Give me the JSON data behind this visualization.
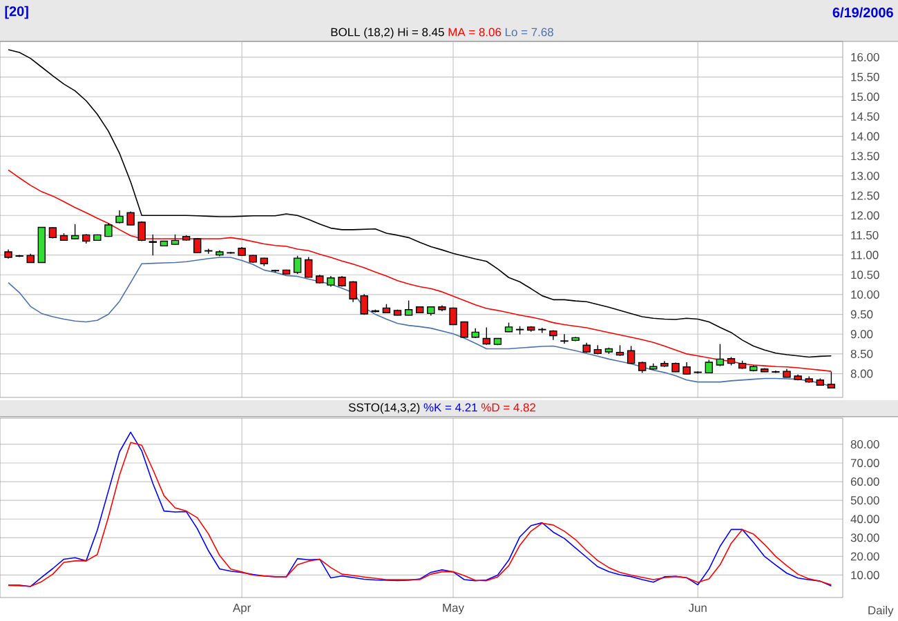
{
  "chart_data": [
    {
      "type": "candlestick",
      "title": "BOLL (18,2)",
      "annotations": [
        "[20]",
        "6/19/2006"
      ],
      "categories": [
        null,
        null,
        null,
        null,
        null,
        null,
        null,
        null,
        null,
        null,
        null,
        null,
        null,
        null,
        null,
        null,
        null,
        null,
        null,
        null,
        null,
        null,
        null,
        null,
        null,
        null,
        null,
        null,
        null,
        null,
        null,
        null,
        null,
        null,
        null,
        null,
        null,
        null,
        null,
        null,
        null,
        null,
        null,
        null,
        null,
        null,
        null,
        null,
        null,
        null,
        null,
        null,
        null,
        null,
        null,
        null,
        null,
        null,
        null,
        null,
        null,
        null,
        null,
        null,
        null,
        null,
        null,
        null,
        null,
        null,
        null,
        null,
        null,
        null,
        null
      ],
      "ohlc": [
        [
          11.08,
          11.14,
          10.91,
          10.94
        ],
        [
          10.98,
          11.0,
          10.95,
          10.97
        ],
        [
          10.99,
          11.03,
          10.8,
          10.81
        ],
        [
          10.81,
          11.7,
          10.8,
          11.7
        ],
        [
          11.69,
          11.7,
          11.42,
          11.44
        ],
        [
          11.49,
          11.55,
          11.36,
          11.37
        ],
        [
          11.41,
          11.78,
          11.4,
          11.49
        ],
        [
          11.51,
          11.53,
          11.29,
          11.35
        ],
        [
          11.37,
          11.52,
          11.36,
          11.51
        ],
        [
          11.47,
          11.8,
          11.46,
          11.76
        ],
        [
          11.82,
          12.13,
          11.8,
          11.98
        ],
        [
          12.07,
          12.1,
          11.75,
          11.76
        ],
        [
          11.83,
          11.85,
          11.35,
          11.37
        ],
        [
          11.34,
          11.52,
          10.99,
          11.32
        ],
        [
          11.23,
          11.36,
          11.22,
          11.35
        ],
        [
          11.27,
          11.52,
          11.26,
          11.37
        ],
        [
          11.47,
          11.5,
          11.36,
          11.38
        ],
        [
          11.41,
          11.43,
          11.05,
          11.06
        ],
        [
          11.11,
          11.16,
          11.03,
          11.1
        ],
        [
          11.0,
          11.12,
          10.97,
          11.08
        ],
        [
          11.05,
          11.08,
          11.03,
          11.06
        ],
        [
          11.17,
          11.2,
          10.98,
          10.99
        ],
        [
          10.99,
          11.0,
          10.8,
          10.82
        ],
        [
          10.92,
          10.93,
          10.72,
          10.78
        ],
        [
          10.61,
          10.63,
          10.56,
          10.6
        ],
        [
          10.62,
          10.63,
          10.51,
          10.52
        ],
        [
          10.56,
          10.98,
          10.52,
          10.92
        ],
        [
          10.88,
          10.95,
          10.43,
          10.44
        ],
        [
          10.47,
          10.5,
          10.28,
          10.3
        ],
        [
          10.24,
          10.47,
          10.2,
          10.42
        ],
        [
          10.44,
          10.47,
          10.2,
          10.22
        ],
        [
          10.32,
          10.34,
          9.81,
          9.89
        ],
        [
          9.97,
          10.01,
          9.49,
          9.51
        ],
        [
          9.59,
          9.62,
          9.55,
          9.57
        ],
        [
          9.66,
          9.76,
          9.53,
          9.54
        ],
        [
          9.6,
          9.62,
          9.47,
          9.48
        ],
        [
          9.48,
          9.85,
          9.47,
          9.62
        ],
        [
          9.69,
          9.7,
          9.53,
          9.54
        ],
        [
          9.52,
          9.7,
          9.47,
          9.69
        ],
        [
          9.69,
          9.73,
          9.58,
          9.62
        ],
        [
          9.66,
          9.67,
          9.23,
          9.24
        ],
        [
          9.31,
          9.32,
          8.91,
          8.92
        ],
        [
          8.92,
          9.15,
          8.9,
          9.05
        ],
        [
          8.89,
          9.17,
          8.73,
          8.75
        ],
        [
          8.74,
          8.9,
          8.72,
          8.89
        ],
        [
          9.06,
          9.29,
          9.05,
          9.18
        ],
        [
          9.12,
          9.2,
          8.99,
          9.11
        ],
        [
          9.18,
          9.2,
          9.06,
          9.1
        ],
        [
          9.12,
          9.16,
          9.03,
          9.11
        ],
        [
          9.08,
          9.1,
          8.85,
          8.96
        ],
        [
          8.83,
          9.0,
          8.76,
          8.82
        ],
        [
          8.84,
          8.93,
          8.82,
          8.91
        ],
        [
          8.72,
          8.78,
          8.53,
          8.55
        ],
        [
          8.61,
          8.72,
          8.49,
          8.51
        ],
        [
          8.55,
          8.66,
          8.5,
          8.63
        ],
        [
          8.54,
          8.72,
          8.45,
          8.47
        ],
        [
          8.58,
          8.7,
          8.25,
          8.26
        ],
        [
          8.28,
          8.3,
          8.02,
          8.08
        ],
        [
          8.12,
          8.26,
          8.1,
          8.18
        ],
        [
          8.26,
          8.32,
          8.17,
          8.19
        ],
        [
          8.26,
          8.28,
          8.04,
          8.05
        ],
        [
          8.17,
          8.29,
          7.98,
          7.99
        ],
        [
          8.04,
          8.06,
          8.0,
          8.03
        ],
        [
          8.02,
          8.35,
          8.01,
          8.29
        ],
        [
          8.22,
          8.75,
          8.19,
          8.37
        ],
        [
          8.38,
          8.42,
          8.21,
          8.26
        ],
        [
          8.26,
          8.33,
          8.12,
          8.14
        ],
        [
          8.08,
          8.21,
          8.06,
          8.18
        ],
        [
          8.12,
          8.14,
          8.04,
          8.05
        ],
        [
          8.05,
          8.08,
          8.02,
          8.04
        ],
        [
          8.06,
          8.12,
          7.9,
          7.91
        ],
        [
          7.94,
          7.98,
          7.83,
          7.85
        ],
        [
          7.87,
          7.93,
          7.77,
          7.79
        ],
        [
          7.84,
          7.88,
          7.7,
          7.71
        ],
        [
          7.73,
          8.05,
          7.63,
          7.64
        ]
      ],
      "series": [
        {
          "name": "Hi = 8.45",
          "type": "line",
          "color": "#000000",
          "values": [
            16.19,
            16.12,
            15.97,
            15.75,
            15.53,
            15.32,
            15.15,
            14.9,
            14.56,
            14.13,
            13.57,
            12.85,
            12.0,
            12.0,
            12.0,
            12.0,
            12.0,
            11.99,
            11.98,
            11.97,
            11.97,
            11.98,
            11.99,
            11.99,
            11.99,
            12.04,
            12.0,
            11.9,
            11.78,
            11.68,
            11.64,
            11.64,
            11.65,
            11.66,
            11.55,
            11.5,
            11.44,
            11.32,
            11.21,
            11.13,
            11.04,
            10.97,
            10.9,
            10.84,
            10.65,
            10.43,
            10.32,
            10.15,
            9.97,
            9.87,
            9.87,
            9.84,
            9.82,
            9.75,
            9.68,
            9.6,
            9.52,
            9.44,
            9.4,
            9.38,
            9.37,
            9.4,
            9.38,
            9.31,
            9.17,
            9.04,
            8.85,
            8.7,
            8.6,
            8.52,
            8.48,
            8.45,
            8.42,
            8.44,
            8.45
          ]
        },
        {
          "name": "MA = 8.06",
          "type": "line",
          "color": "#ff0000",
          "values": [
            13.15,
            12.95,
            12.76,
            12.6,
            12.49,
            12.35,
            12.2,
            12.07,
            11.93,
            11.8,
            11.64,
            11.49,
            11.41,
            11.41,
            11.41,
            11.41,
            11.41,
            11.41,
            11.41,
            11.41,
            11.44,
            11.4,
            11.34,
            11.28,
            11.24,
            11.22,
            11.15,
            11.11,
            11.02,
            10.94,
            10.85,
            10.77,
            10.68,
            10.57,
            10.47,
            10.35,
            10.27,
            10.2,
            10.15,
            10.07,
            9.96,
            9.85,
            9.74,
            9.65,
            9.6,
            9.54,
            9.48,
            9.43,
            9.37,
            9.29,
            9.24,
            9.2,
            9.16,
            9.1,
            9.04,
            8.98,
            8.92,
            8.86,
            8.79,
            8.7,
            8.6,
            8.5,
            8.45,
            8.4,
            8.35,
            8.31,
            8.25,
            8.22,
            8.2,
            8.18,
            8.17,
            8.15,
            8.12,
            8.09,
            8.06
          ]
        },
        {
          "name": "Lo = 7.68",
          "type": "line",
          "color": "#4a72b0",
          "values": [
            10.3,
            10.05,
            9.7,
            9.52,
            9.44,
            9.38,
            9.33,
            9.31,
            9.35,
            9.5,
            9.83,
            10.3,
            10.78,
            10.79,
            10.8,
            10.81,
            10.83,
            10.87,
            10.91,
            10.94,
            10.94,
            10.86,
            10.76,
            10.62,
            10.56,
            10.48,
            10.46,
            10.39,
            10.33,
            10.26,
            10.16,
            10.05,
            9.67,
            9.5,
            9.38,
            9.27,
            9.22,
            9.19,
            9.15,
            9.08,
            9.01,
            8.9,
            8.77,
            8.63,
            8.63,
            8.63,
            8.65,
            8.67,
            8.69,
            8.7,
            8.64,
            8.58,
            8.51,
            8.44,
            8.37,
            8.31,
            8.25,
            8.17,
            8.09,
            8.03,
            7.95,
            7.84,
            7.79,
            7.79,
            7.79,
            7.82,
            7.84,
            7.86,
            7.88,
            7.88,
            7.87,
            7.86,
            7.82,
            7.76,
            7.68
          ]
        }
      ],
      "ylim": [
        7.4,
        16.4
      ],
      "yticks": [
        {
          "value": 8,
          "label": "8.00"
        },
        {
          "value": 8.5,
          "label": "8.50"
        },
        {
          "value": 9,
          "label": "9.00"
        },
        {
          "value": 9.5,
          "label": "9.50"
        },
        {
          "value": 10,
          "label": "10.00"
        },
        {
          "value": 10.5,
          "label": "10.50"
        },
        {
          "value": 11,
          "label": "11.00"
        },
        {
          "value": 11.5,
          "label": "11.50"
        },
        {
          "value": 12,
          "label": "12.00"
        },
        {
          "value": 12.5,
          "label": "12.50"
        },
        {
          "value": 13,
          "label": "13.00"
        },
        {
          "value": 13.5,
          "label": "13.50"
        },
        {
          "value": 14,
          "label": "14.00"
        },
        {
          "value": 14.5,
          "label": "14.50"
        },
        {
          "value": 15,
          "label": "15.00"
        },
        {
          "value": 15.5,
          "label": "15.50"
        },
        {
          "value": 16,
          "label": "16.00"
        }
      ],
      "grid": true,
      "legend": "top",
      "tick_labels": "y"
    },
    {
      "type": "line",
      "title": "SSTO(14,3,2)",
      "annotations": [
        "Daily"
      ],
      "categories": [
        null,
        null,
        null,
        null,
        null,
        null,
        null,
        null,
        null,
        null,
        null,
        null,
        null,
        null,
        null,
        null,
        null,
        null,
        null,
        null,
        null,
        "Apr",
        null,
        null,
        null,
        null,
        null,
        null,
        null,
        null,
        null,
        null,
        null,
        null,
        null,
        null,
        null,
        null,
        null,
        null,
        "May",
        null,
        null,
        null,
        null,
        null,
        null,
        null,
        null,
        null,
        null,
        null,
        null,
        null,
        null,
        null,
        null,
        null,
        null,
        null,
        null,
        null,
        "Jun",
        null,
        null,
        null,
        null,
        null,
        null,
        null,
        null,
        null,
        null,
        null,
        null
      ],
      "series": [
        {
          "name": "%K = 4.21",
          "color": "#0000ff",
          "values": [
            4.6,
            4.6,
            3.9,
            8.8,
            13.5,
            18.5,
            19.3,
            17.6,
            34,
            55,
            76,
            86.5,
            76.5,
            59,
            44.3,
            43.8,
            44,
            34.8,
            23,
            13.3,
            12.1,
            11.4,
            10.3,
            9.5,
            9.1,
            9.1,
            18.8,
            18.2,
            18.5,
            8.5,
            9.5,
            8.7,
            7.8,
            7.4,
            7.2,
            7.1,
            7.2,
            7.9,
            11.5,
            12.8,
            11.7,
            7.6,
            7,
            7.4,
            10,
            18,
            30.5,
            36.5,
            38,
            33,
            29.6,
            24.5,
            19.5,
            14.5,
            11.8,
            10.2,
            9.2,
            7.6,
            6.2,
            9.1,
            9.3,
            8.6,
            4.8,
            13.2,
            25.4,
            34.4,
            34.4,
            27.5,
            20,
            15.4,
            11,
            8.4,
            7.5,
            6.8,
            4.21
          ]
        },
        {
          "name": "%D = 4.82",
          "color": "#ff0000",
          "values": [
            4.5,
            4.3,
            4,
            6.5,
            10.5,
            16.8,
            17.6,
            17.6,
            21,
            41,
            63.5,
            81,
            79.5,
            66.5,
            52.5,
            46,
            44.3,
            40.7,
            32,
            20.5,
            13.2,
            11.7,
            10,
            9.5,
            9.1,
            9.1,
            15.5,
            17.5,
            18.5,
            14,
            10.5,
            9.8,
            9,
            8.3,
            7.6,
            7.6,
            7.6,
            7.6,
            10.5,
            11.8,
            11.8,
            9.7,
            7.2,
            7,
            9,
            15,
            26,
            33.5,
            37.8,
            36.8,
            33.5,
            29,
            23,
            17.8,
            14,
            11.5,
            10,
            8.8,
            7.6,
            8.6,
            9.3,
            8.5,
            6.1,
            8,
            15.5,
            27,
            34.4,
            32,
            26.4,
            20,
            15,
            10.5,
            8,
            6.7,
            4.82
          ]
        }
      ],
      "ylim": [
        -2,
        94
      ],
      "yticks": [
        {
          "value": 10,
          "label": "10.00"
        },
        {
          "value": 20,
          "label": "20.00"
        },
        {
          "value": 30,
          "label": "30.00"
        },
        {
          "value": 40,
          "label": "40.00"
        },
        {
          "value": 50,
          "label": "50.00"
        },
        {
          "value": 60,
          "label": "60.00"
        },
        {
          "value": 70,
          "label": "70.00"
        },
        {
          "value": 80,
          "label": "80.00"
        }
      ],
      "grid": true,
      "legend": "top"
    }
  ]
}
